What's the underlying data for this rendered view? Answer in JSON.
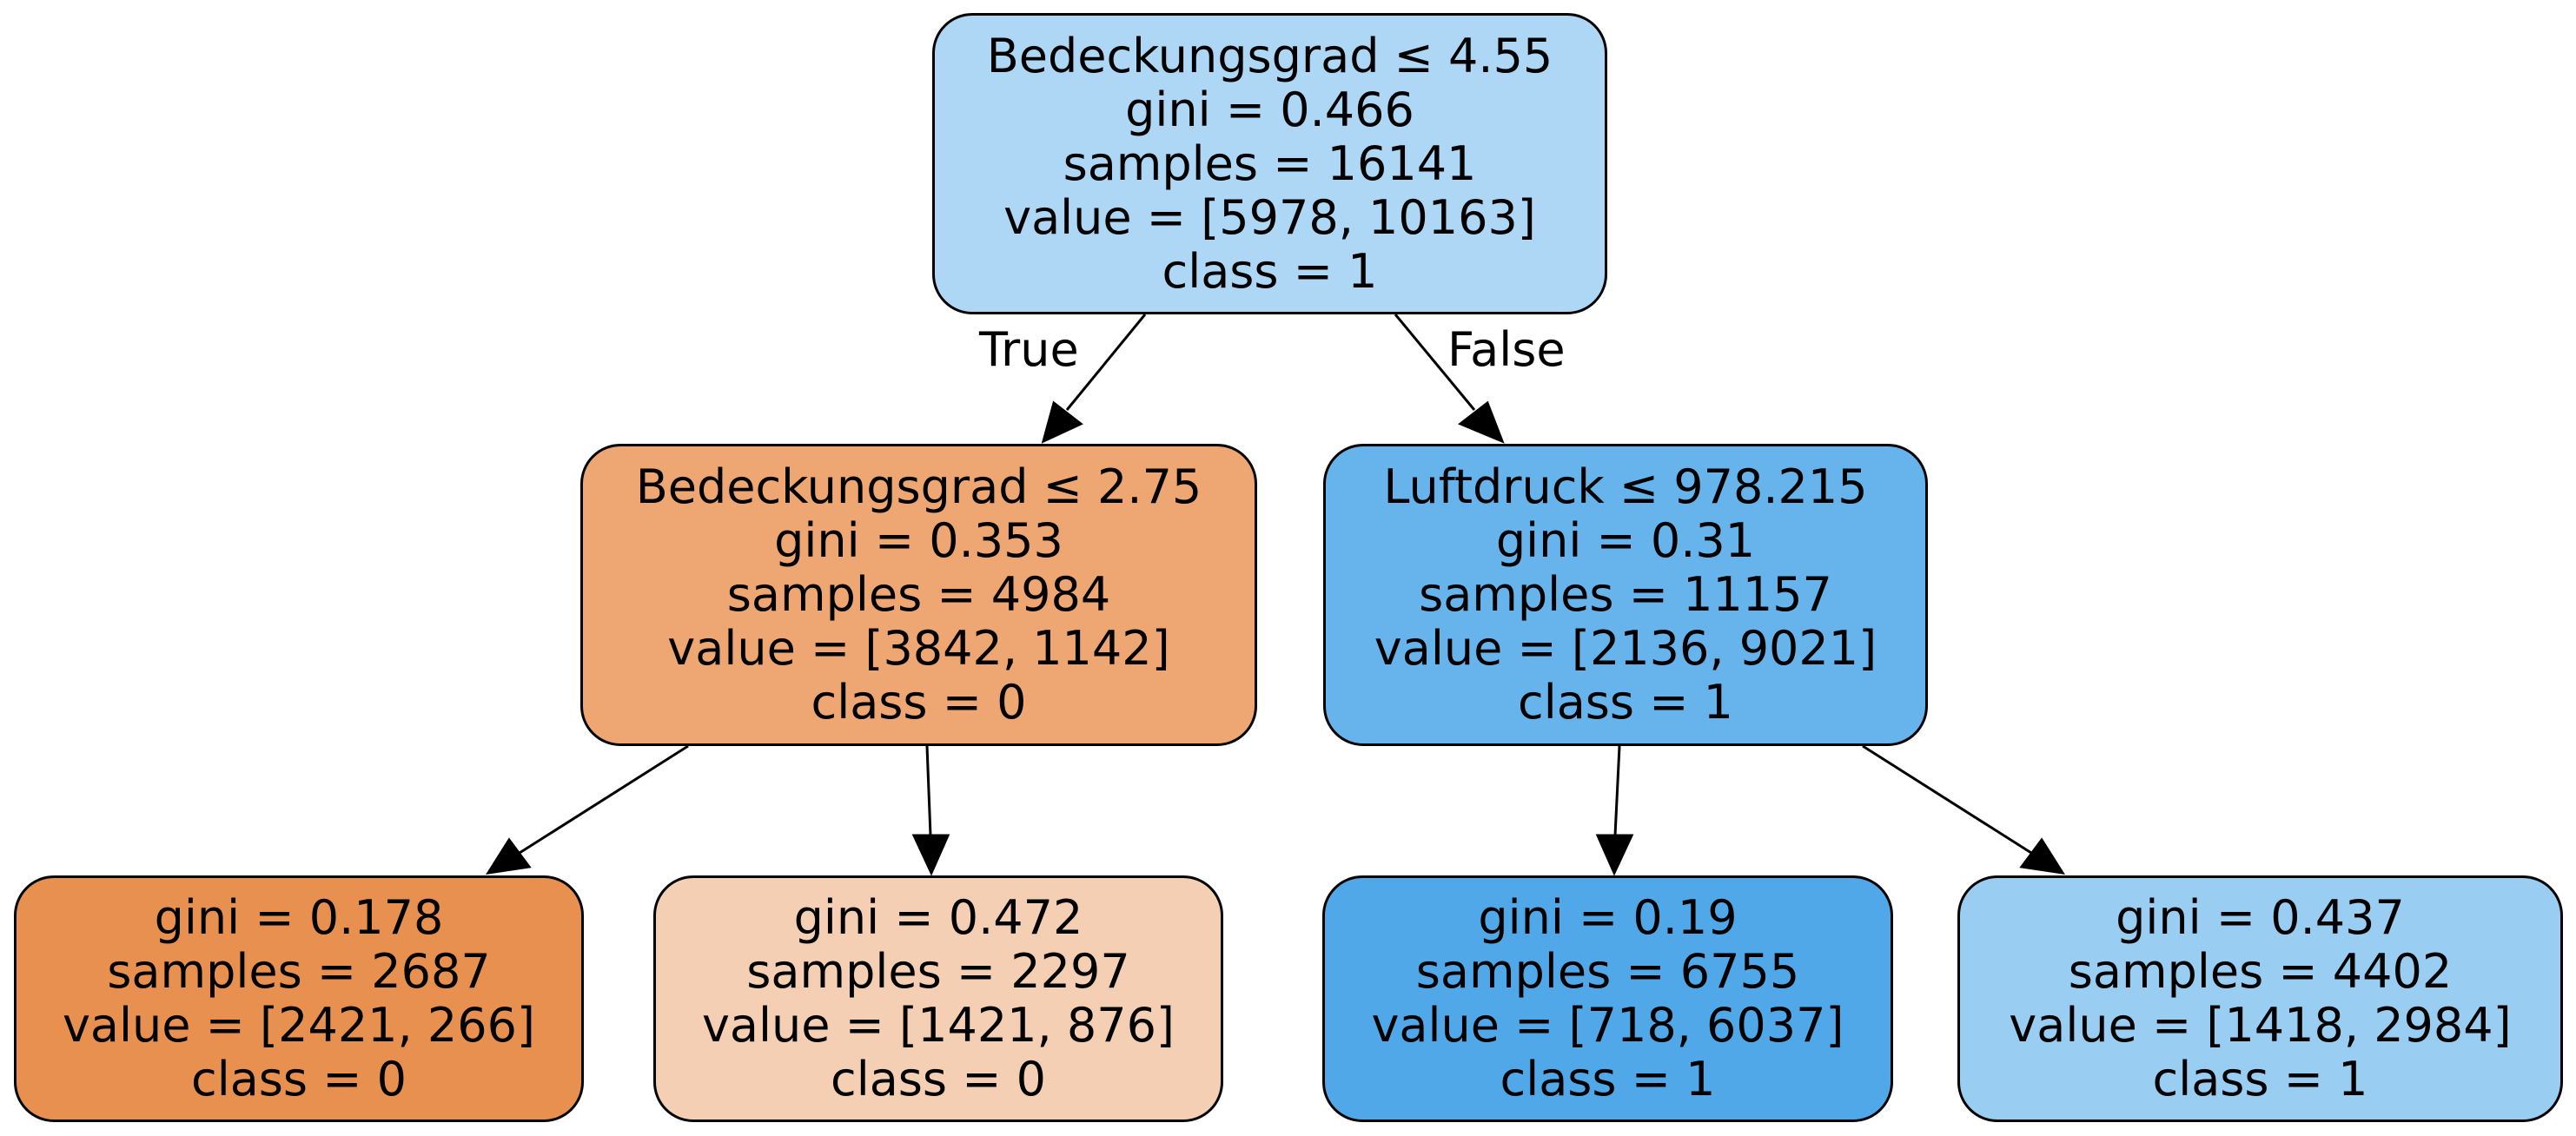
{
  "diagram": {
    "type": "decision-tree",
    "edge_labels": {
      "true": "True",
      "false": "False"
    },
    "nodes": {
      "root": {
        "split": "Bedeckungsgrad ≤ 4.55",
        "gini": "gini = 0.466",
        "samples": "samples = 16141",
        "value": "value = [5978, 10163]",
        "class": "class = 1",
        "color": "#aed6f5"
      },
      "n1": {
        "split": "Bedeckungsgrad ≤ 2.75",
        "gini": "gini = 0.353",
        "samples": "samples = 4984",
        "value": "value = [3842, 1142]",
        "class": "class = 0",
        "color": "#eea673"
      },
      "n4": {
        "split": "Luftdruck ≤ 978.215",
        "gini": "gini = 0.31",
        "samples": "samples = 11157",
        "value": "value = [2136, 9021]",
        "class": "class = 1",
        "color": "#67b3eb"
      },
      "n2": {
        "gini": "gini = 0.178",
        "samples": "samples = 2687",
        "value": "value = [2421, 266]",
        "class": "class = 0",
        "color": "#e89050"
      },
      "n3": {
        "gini": "gini = 0.472",
        "samples": "samples = 2297",
        "value": "value = [1421, 876]",
        "class": "class = 0",
        "color": "#f5cfb3"
      },
      "n5": {
        "gini": "gini = 0.19",
        "samples": "samples = 6755",
        "value": "value = [718, 6037]",
        "class": "class = 1",
        "color": "#51a8e8"
      },
      "n6": {
        "gini": "gini = 0.437",
        "samples": "samples = 4402",
        "value": "value = [1418, 2984]",
        "class": "class = 1",
        "color": "#9acdf2"
      }
    },
    "edges": [
      {
        "from": "root",
        "to": "n1"
      },
      {
        "from": "root",
        "to": "n4"
      },
      {
        "from": "n1",
        "to": "n2"
      },
      {
        "from": "n1",
        "to": "n3"
      },
      {
        "from": "n4",
        "to": "n5"
      },
      {
        "from": "n4",
        "to": "n6"
      }
    ]
  }
}
